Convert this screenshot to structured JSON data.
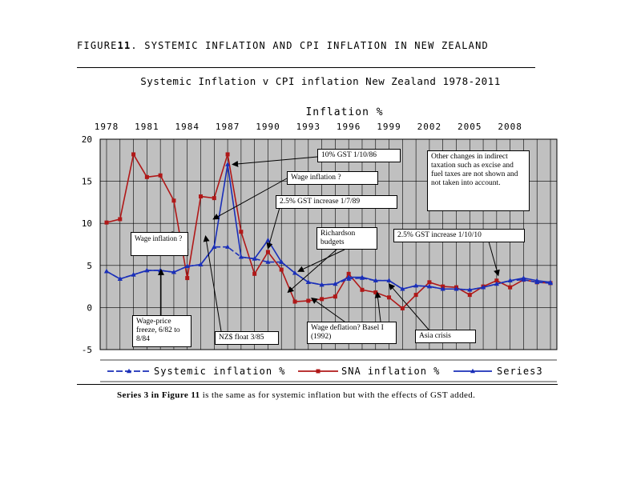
{
  "figure": {
    "prefix": "FIGURE",
    "number": "11",
    "title_rest": ". SYSTEMIC INFLATION AND CPI INFLATION IN NEW ZEALAND",
    "caption_lead": "Series 3 in Figure ",
    "caption_num": "11",
    "caption_rest": " is the same as for systemic inflation but with the effects of GST added."
  },
  "colors": {
    "systemic": "#1a2fb8",
    "sna": "#b01818",
    "series3": "#1a2fb8",
    "plot_bg": "#c0c0c0",
    "grid": "#000000"
  },
  "annotations": {
    "gst_1086": "10% GST 1/10/86",
    "wage_inflation": "Wage inflation ?",
    "gst_1789": "2.5% GST increase 1/7/89",
    "other_changes": "Other changes in indirect taxation such as excise and fuel taxes are not shown and not taken into account.",
    "wage_inflation_early": "Wage inflation ?",
    "richardson": "Richardson budgets",
    "gst_11010": "2.5% GST increase 1/10/10",
    "wage_price_freeze": "Wage-price freeze, 6/82 to 8/84",
    "nz_float": "NZ$ float 3/85",
    "wage_deflation": "Wage deflation? Basel I (1992)",
    "asia_crisis": "Asia crisis"
  },
  "chart_data": {
    "type": "line",
    "title": "Systemic Inflation v CPI inflation New  Zealand 1978-2011",
    "xlabel": "Inflation %",
    "ylabel": "",
    "x_axis_position": "top",
    "x_tick_labels": [
      "1978",
      "1981",
      "1984",
      "1987",
      "1990",
      "1993",
      "1996",
      "1999",
      "2002",
      "2005",
      "2008"
    ],
    "xlim": [
      1978,
      2011
    ],
    "ylim": [
      -5,
      20
    ],
    "y_ticks": [
      -5,
      0,
      5,
      10,
      15,
      20
    ],
    "grid": true,
    "legend_position": "bottom",
    "x": [
      1978,
      1979,
      1980,
      1981,
      1982,
      1983,
      1984,
      1985,
      1986,
      1987,
      1988,
      1989,
      1990,
      1991,
      1992,
      1993,
      1994,
      1995,
      1996,
      1997,
      1998,
      1999,
      2000,
      2001,
      2002,
      2003,
      2004,
      2005,
      2006,
      2007,
      2008,
      2009,
      2010,
      2011
    ],
    "series": [
      {
        "name": "Systemic inflation %",
        "style": "dashed",
        "marker": "triangle",
        "color_key": "systemic",
        "values": [
          4.3,
          3.4,
          3.9,
          4.4,
          4.4,
          4.2,
          4.9,
          5.1,
          7.2,
          7.2,
          6.0,
          5.8,
          5.4,
          5.4,
          4.1,
          3.0,
          2.7,
          2.8,
          3.4,
          3.5,
          3.2,
          3.2,
          2.2,
          2.6,
          2.5,
          2.2,
          2.2,
          2.1,
          2.4,
          2.8,
          3.2,
          3.3,
          3.0,
          2.9
        ]
      },
      {
        "name": "SNA inflation %",
        "style": "solid",
        "marker": "square",
        "color_key": "sna",
        "values": [
          10.1,
          10.5,
          18.2,
          15.5,
          15.7,
          12.7,
          3.5,
          13.2,
          13.0,
          18.2,
          9.0,
          4.0,
          6.6,
          4.5,
          0.7,
          0.8,
          1.0,
          1.3,
          4.0,
          2.1,
          1.8,
          1.2,
          -0.1,
          1.5,
          3.0,
          2.5,
          2.4,
          1.5,
          2.5,
          3.2,
          2.4,
          3.3,
          3.0,
          2.9
        ]
      },
      {
        "name": "Series3",
        "style": "solid",
        "marker": "triangle",
        "color_key": "series3",
        "values": [
          4.3,
          3.4,
          3.9,
          4.4,
          4.4,
          4.2,
          4.9,
          5.1,
          7.2,
          17.0,
          6.0,
          5.8,
          8.0,
          5.4,
          4.1,
          3.0,
          2.7,
          2.8,
          3.6,
          3.6,
          3.2,
          3.2,
          2.2,
          2.6,
          2.5,
          2.2,
          2.2,
          2.1,
          2.4,
          2.8,
          3.2,
          3.5,
          3.2,
          3.0
        ]
      }
    ]
  }
}
